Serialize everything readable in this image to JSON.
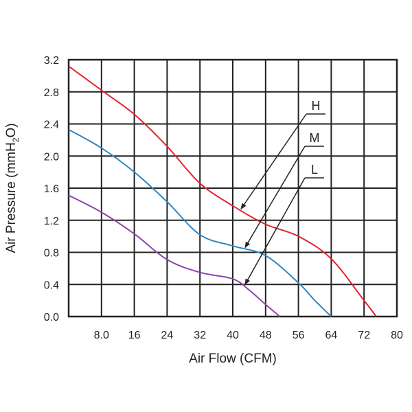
{
  "chart_data": {
    "type": "line",
    "xlabel": "Air Flow (CFM)",
    "ylabel": "Air Pressure (mmH2O)",
    "ylabel_parts": {
      "prefix": "Air Pressure (mmH",
      "sub": "2",
      "suffix": "O)"
    },
    "xlim": [
      0,
      80
    ],
    "ylim": [
      0,
      3.2
    ],
    "grid": true,
    "x_ticks": [
      8,
      16,
      24,
      32,
      40,
      48,
      56,
      64,
      72,
      80
    ],
    "x_tick_labels": [
      "8.0",
      "16",
      "24",
      "32",
      "40",
      "48",
      "56",
      "64",
      "72",
      "80"
    ],
    "y_ticks": [
      0,
      0.4,
      0.8,
      1.2,
      1.6,
      2.0,
      2.4,
      2.8,
      3.2
    ],
    "y_tick_labels": [
      "0.0",
      "0.4",
      "0.8",
      "1.2",
      "1.6",
      "2.0",
      "2.4",
      "2.8",
      "3.2"
    ],
    "series": [
      {
        "name": "H",
        "color": "#e8212e",
        "points": [
          [
            0,
            3.12
          ],
          [
            8,
            2.82
          ],
          [
            16,
            2.52
          ],
          [
            24,
            2.12
          ],
          [
            32,
            1.66
          ],
          [
            40,
            1.38
          ],
          [
            48,
            1.15
          ],
          [
            56,
            1.0
          ],
          [
            64,
            0.72
          ],
          [
            72,
            0.2
          ],
          [
            75,
            0.0
          ]
        ],
        "arrow_to": [
          42,
          1.34
        ]
      },
      {
        "name": "M",
        "color": "#2e86c1",
        "points": [
          [
            0,
            2.33
          ],
          [
            8,
            2.1
          ],
          [
            16,
            1.8
          ],
          [
            24,
            1.43
          ],
          [
            32,
            1.02
          ],
          [
            40,
            0.88
          ],
          [
            48,
            0.76
          ],
          [
            56,
            0.42
          ],
          [
            60,
            0.2
          ],
          [
            64,
            0.0
          ]
        ],
        "arrow_to": [
          43,
          0.86
        ]
      },
      {
        "name": "L",
        "color": "#8e44ad",
        "points": [
          [
            0,
            1.51
          ],
          [
            8,
            1.3
          ],
          [
            16,
            1.03
          ],
          [
            24,
            0.71
          ],
          [
            32,
            0.55
          ],
          [
            40,
            0.47
          ],
          [
            44,
            0.33
          ],
          [
            48,
            0.15
          ],
          [
            51.5,
            0.0
          ]
        ],
        "arrow_to": [
          43,
          0.4
        ]
      }
    ]
  }
}
